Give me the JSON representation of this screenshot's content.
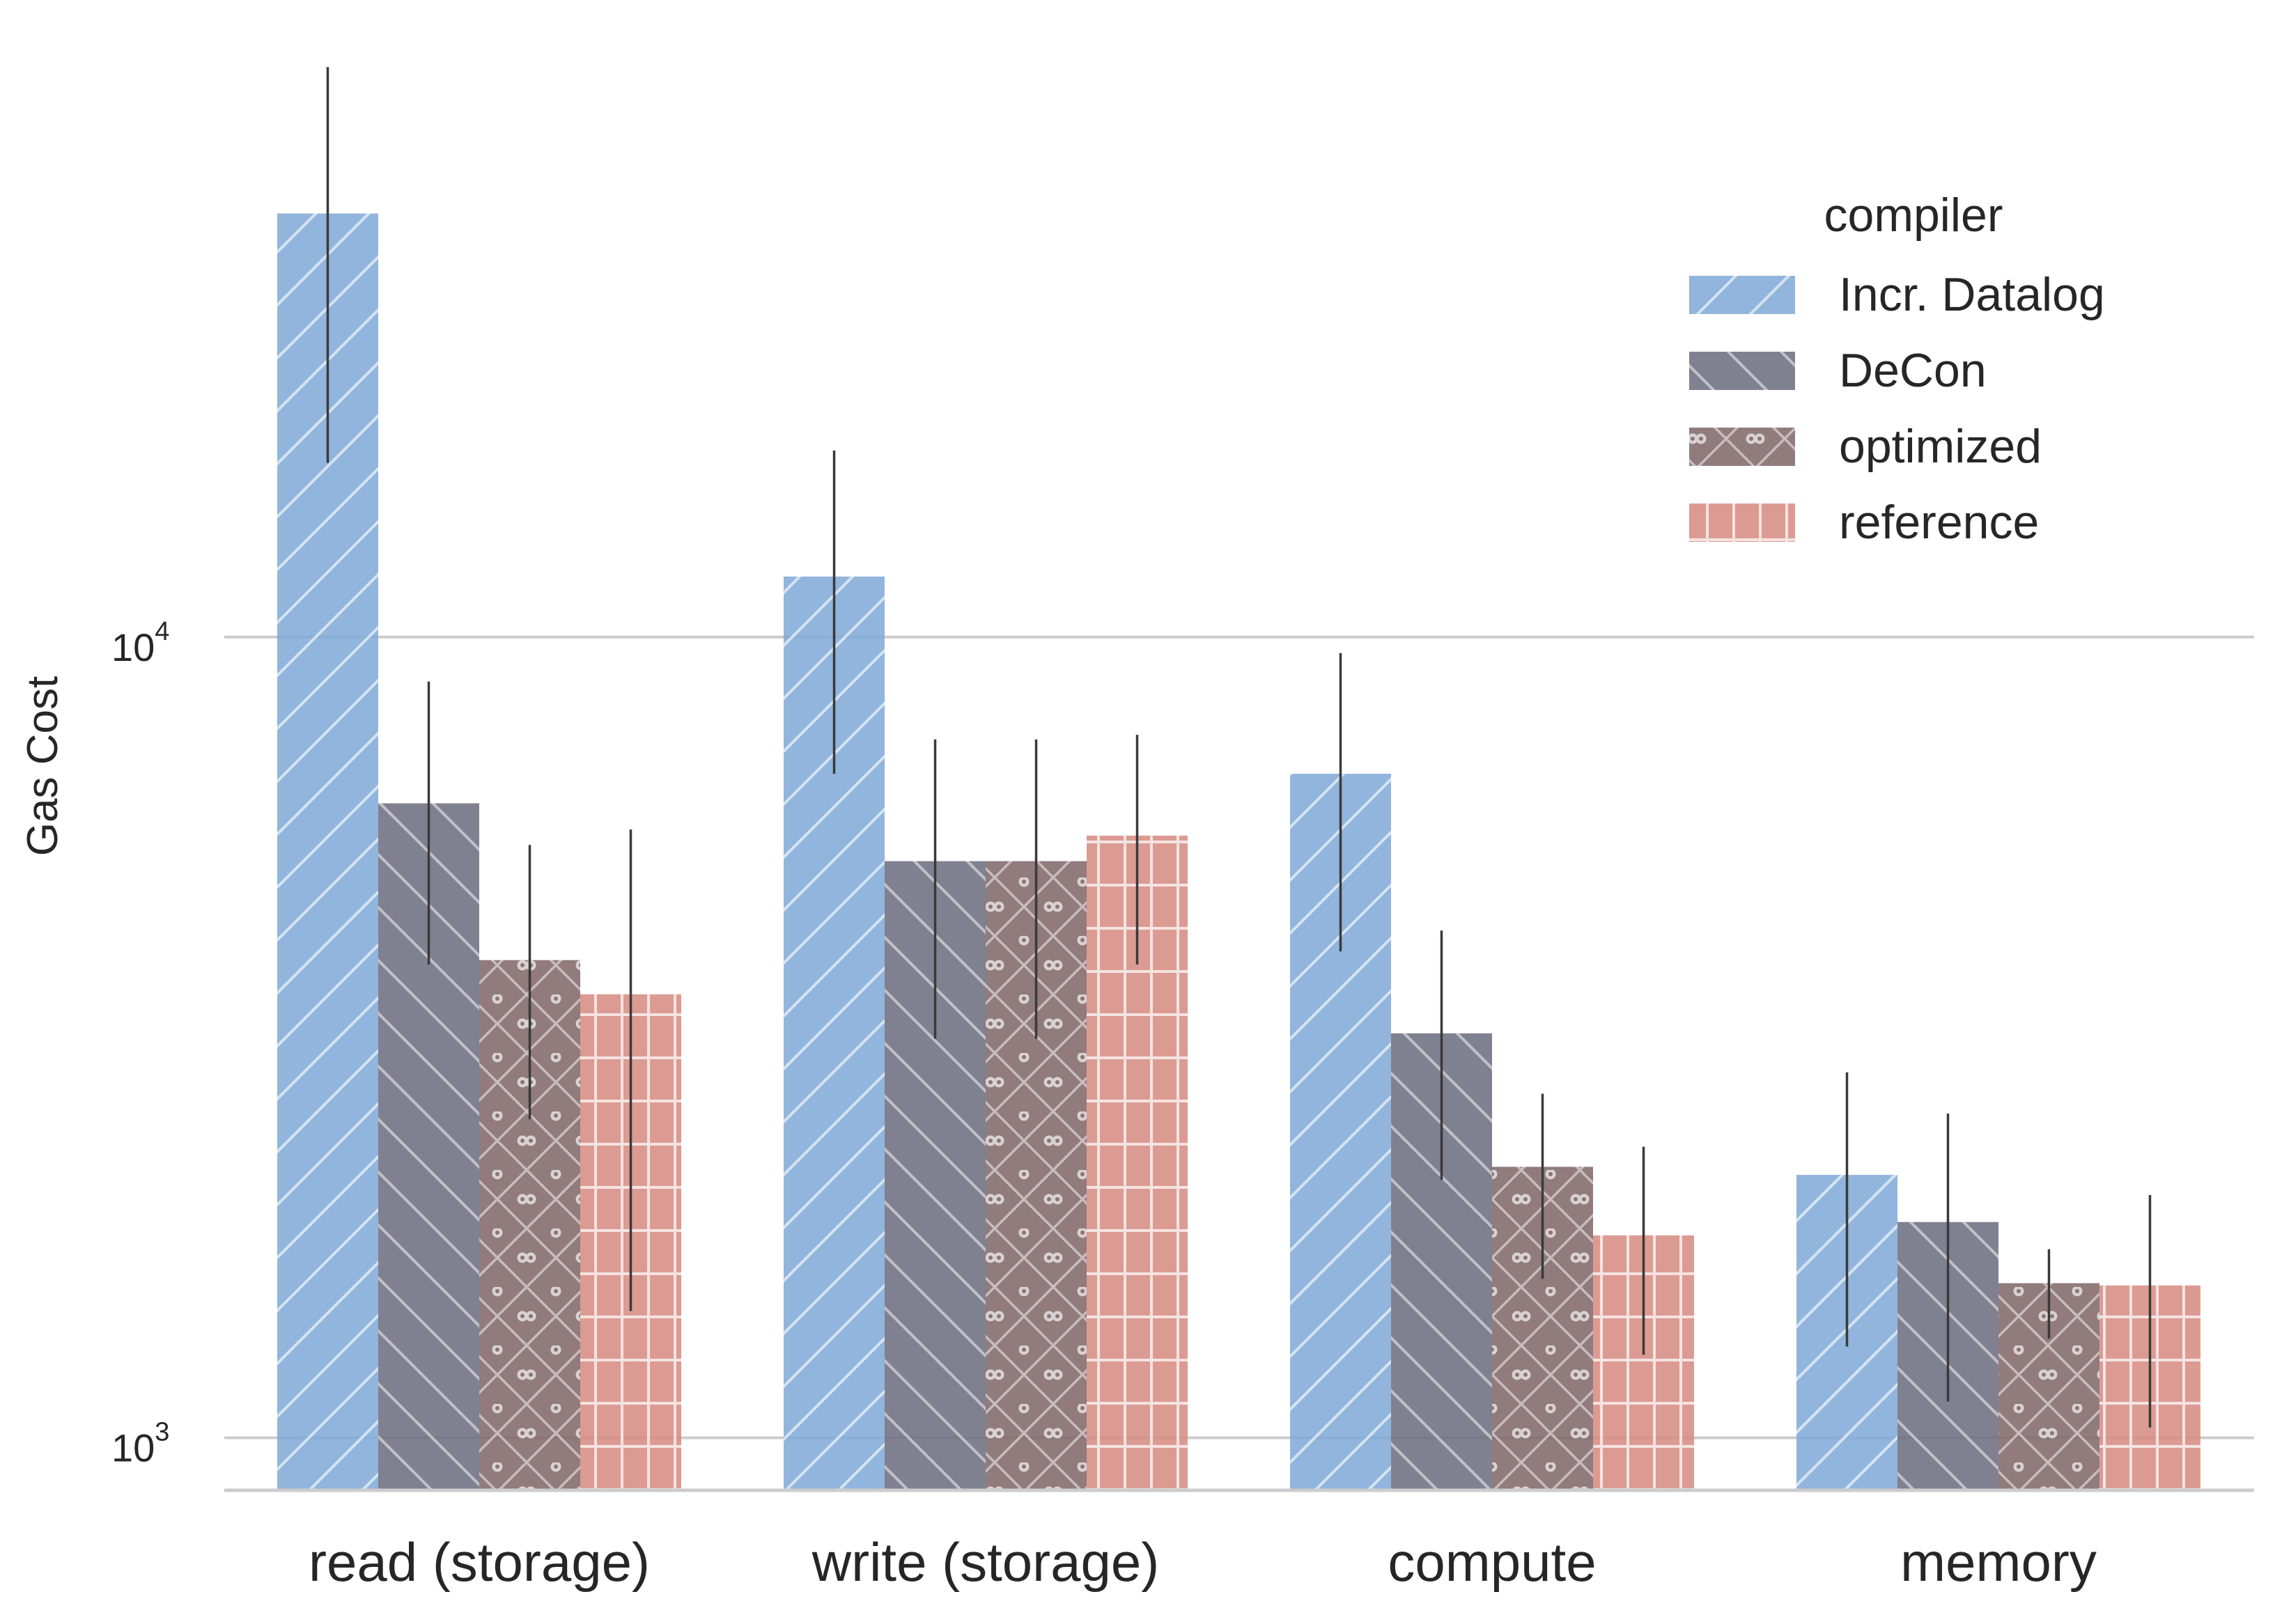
{
  "chart_data": {
    "type": "bar",
    "ylabel": "Gas Cost",
    "yscale": "log",
    "ylim": [
      860,
      60000
    ],
    "yticks": [
      {
        "value": 1000,
        "base": "10",
        "exp": "3"
      },
      {
        "value": 10000,
        "base": "10",
        "exp": "4"
      }
    ],
    "grid": true,
    "categories": [
      "read (storage)",
      "write (storage)",
      "compute",
      "memory"
    ],
    "legend": {
      "title": "compiler",
      "placement": "upper-right"
    },
    "series": [
      {
        "name": "Incr. Datalog",
        "color": "#7ea8d6",
        "pattern": "diagonal-forward",
        "values": [
          33800,
          11900,
          6750,
          2130
        ],
        "err_low": [
          16500,
          6750,
          4050,
          1300
        ],
        "err_high": [
          51500,
          17100,
          9550,
          2860
        ]
      },
      {
        "name": "DeCon",
        "color": "#6a6b7c",
        "pattern": "diagonal-back",
        "values": [
          6200,
          5250,
          3200,
          1860
        ],
        "err_low": [
          3900,
          3150,
          2100,
          1110
        ],
        "err_high": [
          8800,
          7450,
          4300,
          2540
        ]
      },
      {
        "name": "optimized",
        "color": "#7e6466",
        "pattern": "diamond-dots",
        "values": [
          3950,
          5250,
          2180,
          1560
        ],
        "err_low": [
          2500,
          3150,
          1580,
          1330
        ],
        "err_high": [
          5500,
          7450,
          2690,
          1720
        ]
      },
      {
        "name": "reference",
        "color": "#d58a80",
        "pattern": "grid",
        "values": [
          3580,
          5650,
          1790,
          1550
        ],
        "err_low": [
          1440,
          3900,
          1270,
          1030
        ],
        "err_high": [
          5750,
          7550,
          2310,
          2010
        ]
      }
    ]
  }
}
